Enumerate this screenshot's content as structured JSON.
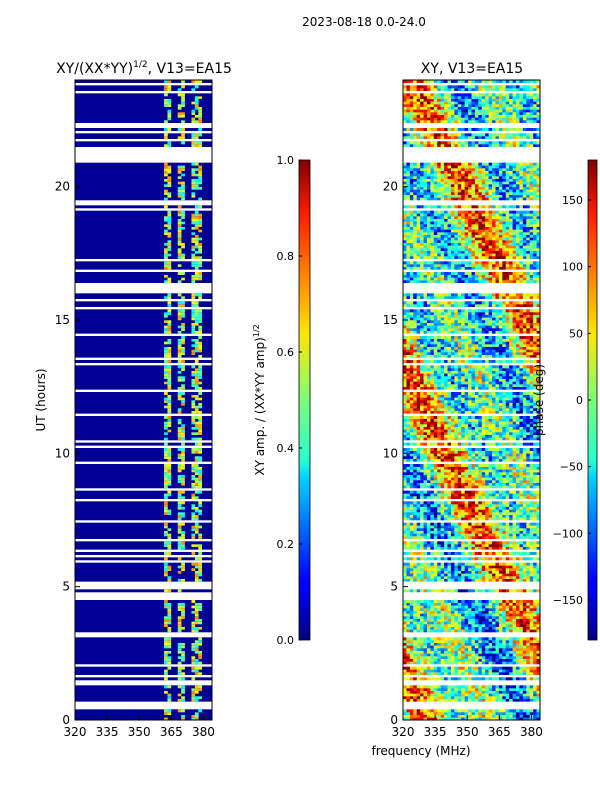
{
  "suptitle": "2023-08-18 0.0-24.0",
  "xlabel_shared": "frequency (MHz)",
  "chart_data": [
    {
      "type": "heatmap",
      "title": "XY/(XX*YY)",
      "title_sup": "1/2",
      "title_tail": ", V13=EA15",
      "xlabel": "frequency (MHz)",
      "ylabel": "UT (hours)",
      "xlim": [
        320,
        384
      ],
      "ylim": [
        0,
        24
      ],
      "xticks": [
        320,
        335,
        350,
        365,
        380
      ],
      "yticks": [
        0,
        5,
        10,
        15,
        20
      ],
      "colorbar": {
        "label": "XY amp. / (XX*YY amp)",
        "label_sup": "1/2",
        "range": [
          0.0,
          1.0
        ],
        "ticks": [
          "0.0",
          "0.2",
          "0.4",
          "0.6",
          "0.8",
          "1.0"
        ],
        "colormap": "jet"
      },
      "description_values": {
        "background_amp": 0.0,
        "band_amp_range": [
          0.35,
          0.75
        ],
        "band_freq_range": [
          361,
          382
        ]
      }
    },
    {
      "type": "heatmap",
      "title": "XY, V13=EA15",
      "xlabel": "frequency (MHz)",
      "ylabel": "",
      "xlim": [
        320,
        384
      ],
      "ylim": [
        0,
        24
      ],
      "xticks": [
        320,
        335,
        350,
        365,
        380
      ],
      "yticks": [
        0,
        5,
        10,
        15,
        20
      ],
      "colorbar": {
        "label": "phase (deg)",
        "range": [
          -180,
          180
        ],
        "ticks": [
          "−150",
          "−100",
          "−50",
          "0",
          "50",
          "100",
          "150"
        ],
        "colormap": "jet"
      }
    }
  ]
}
